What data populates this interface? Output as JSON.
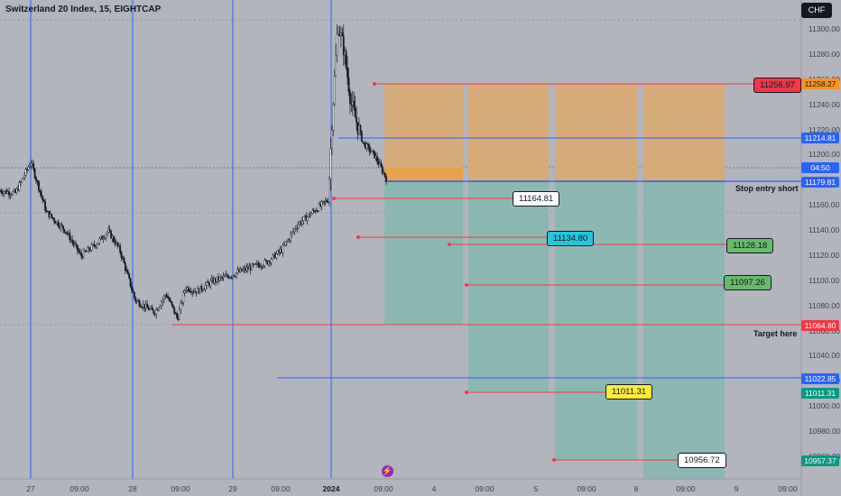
{
  "header": {
    "title": "Switzerland 20 Index, 15, EIGHTCAP",
    "currency": "CHF"
  },
  "price_axis": {
    "ticks": [
      "11300.00",
      "11280.00",
      "11260.00",
      "11240.00",
      "11220.00",
      "11200.00",
      "11180.00",
      "11160.00",
      "11140.00",
      "11120.00",
      "11100.00",
      "11080.00",
      "11060.00",
      "11040.00",
      "11020.00",
      "11000.00",
      "10980.00",
      "10960.00"
    ]
  },
  "time_axis": [
    "27",
    "09:00",
    "28",
    "09:00",
    "29",
    "09:00",
    "2024",
    "09:00",
    "4",
    "09:00",
    "5",
    "09:00",
    "8",
    "09:00",
    "9",
    "09:00"
  ],
  "axis_badges": {
    "top_box": "11258.27",
    "upper_blue": "11214.81",
    "countdown": "04:50",
    "current": "11179.81",
    "target": "11064.80",
    "blue_low": "11022.85",
    "green_low": "11011.31",
    "bottom": "10957.37"
  },
  "annotations": {
    "stop_entry": "Stop entry short",
    "target_here": "Target here"
  },
  "price_labels": {
    "red_top": "11256.97",
    "white_mid": "11164.81",
    "cyan": "11134.80",
    "green_1": "11128.18",
    "green_2": "11097.26",
    "yellow": "11011.31",
    "white_bottom": "10956.72"
  },
  "colors": {
    "background": "#b2b5be",
    "stop_zone": "#d6ab7a",
    "target_zone": "#8bb7b3",
    "red_line": "#f23645",
    "blue_line": "#2962ff",
    "green_label": "#66bb6a",
    "cyan_label": "#26c6da",
    "yellow_label": "#ffeb3b"
  },
  "chart_data": {
    "type": "candlestick",
    "symbol": "Switzerland 20 Index",
    "interval": "15",
    "ylim": [
      10940,
      11315
    ],
    "trend": [
      {
        "t": 0.0,
        "p": 11172
      },
      {
        "t": 0.04,
        "p": 11170
      },
      {
        "t": 0.08,
        "p": 11195
      },
      {
        "t": 0.12,
        "p": 11155
      },
      {
        "t": 0.17,
        "p": 11140
      },
      {
        "t": 0.21,
        "p": 11120
      },
      {
        "t": 0.25,
        "p": 11130
      },
      {
        "t": 0.28,
        "p": 11140
      },
      {
        "t": 0.31,
        "p": 11125
      },
      {
        "t": 0.35,
        "p": 11085
      },
      {
        "t": 0.4,
        "p": 11075
      },
      {
        "t": 0.43,
        "p": 11090
      },
      {
        "t": 0.46,
        "p": 11070
      },
      {
        "t": 0.48,
        "p": 11095
      },
      {
        "t": 0.51,
        "p": 11092
      },
      {
        "t": 0.55,
        "p": 11100
      },
      {
        "t": 0.6,
        "p": 11105
      },
      {
        "t": 0.64,
        "p": 11110
      },
      {
        "t": 0.69,
        "p": 11115
      },
      {
        "t": 0.73,
        "p": 11125
      },
      {
        "t": 0.77,
        "p": 11145
      },
      {
        "t": 0.81,
        "p": 11155
      },
      {
        "t": 0.85,
        "p": 11165
      },
      {
        "t": 0.86,
        "p": 11230
      },
      {
        "t": 0.875,
        "p": 11305
      },
      {
        "t": 0.89,
        "p": 11285
      },
      {
        "t": 0.91,
        "p": 11240
      },
      {
        "t": 0.94,
        "p": 11210
      },
      {
        "t": 0.97,
        "p": 11200
      },
      {
        "t": 1.0,
        "p": 11182
      }
    ]
  }
}
